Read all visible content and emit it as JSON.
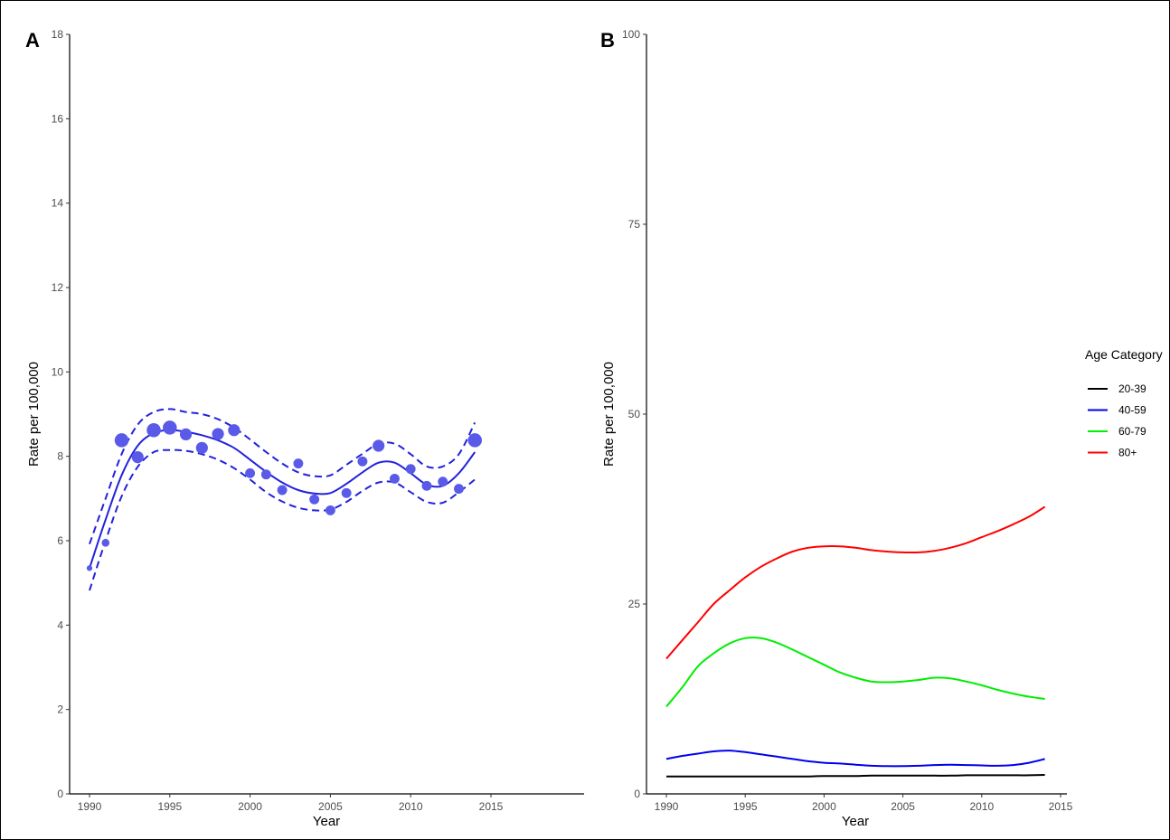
{
  "chart_data": [
    {
      "panel": "A",
      "type": "scatter",
      "xlabel": "Year",
      "ylabel": "Rate per 100,000",
      "xlim": [
        1990,
        2015
      ],
      "ylim": [
        0,
        18
      ],
      "x_ticks": [
        1990,
        1995,
        2000,
        2005,
        2010,
        2015
      ],
      "y_ticks": [
        0,
        2,
        4,
        6,
        8,
        10,
        12,
        14,
        16,
        18
      ],
      "points": [
        {
          "x": 1990,
          "y": 5.35,
          "size": 1
        },
        {
          "x": 1991,
          "y": 5.95,
          "size": 2
        },
        {
          "x": 1992,
          "y": 8.38,
          "size": 5
        },
        {
          "x": 1993,
          "y": 7.98,
          "size": 4
        },
        {
          "x": 1994,
          "y": 8.62,
          "size": 5
        },
        {
          "x": 1995,
          "y": 8.68,
          "size": 5
        },
        {
          "x": 1996,
          "y": 8.52,
          "size": 4
        },
        {
          "x": 1997,
          "y": 8.2,
          "size": 4
        },
        {
          "x": 1998,
          "y": 8.53,
          "size": 4
        },
        {
          "x": 1999,
          "y": 8.62,
          "size": 4
        },
        {
          "x": 2000,
          "y": 7.6,
          "size": 3
        },
        {
          "x": 2001,
          "y": 7.57,
          "size": 3
        },
        {
          "x": 2002,
          "y": 7.2,
          "size": 3
        },
        {
          "x": 2003,
          "y": 7.83,
          "size": 3
        },
        {
          "x": 2004,
          "y": 6.98,
          "size": 3
        },
        {
          "x": 2005,
          "y": 6.72,
          "size": 3
        },
        {
          "x": 2006,
          "y": 7.13,
          "size": 3
        },
        {
          "x": 2007,
          "y": 7.88,
          "size": 3
        },
        {
          "x": 2008,
          "y": 8.25,
          "size": 4
        },
        {
          "x": 2009,
          "y": 7.47,
          "size": 3
        },
        {
          "x": 2010,
          "y": 7.7,
          "size": 3
        },
        {
          "x": 2011,
          "y": 7.3,
          "size": 3
        },
        {
          "x": 2012,
          "y": 7.4,
          "size": 3
        },
        {
          "x": 2013,
          "y": 7.23,
          "size": 3
        },
        {
          "x": 2014,
          "y": 8.38,
          "size": 5
        }
      ],
      "fit_line": {
        "x": [
          1990,
          1991,
          1992,
          1993,
          1994,
          1995,
          1996,
          1997,
          1998,
          1999,
          2000,
          2001,
          2002,
          2003,
          2004,
          2005,
          2006,
          2007,
          2008,
          2009,
          2010,
          2011,
          2012,
          2013,
          2014
        ],
        "y": [
          5.35,
          6.5,
          7.55,
          8.25,
          8.55,
          8.62,
          8.58,
          8.5,
          8.38,
          8.2,
          7.92,
          7.63,
          7.38,
          7.2,
          7.12,
          7.13,
          7.35,
          7.62,
          7.85,
          7.85,
          7.6,
          7.33,
          7.3,
          7.6,
          8.1
        ],
        "lower": [
          4.82,
          6.0,
          7.05,
          7.75,
          8.1,
          8.15,
          8.13,
          8.05,
          7.92,
          7.72,
          7.45,
          7.15,
          6.93,
          6.78,
          6.72,
          6.74,
          6.92,
          7.18,
          7.38,
          7.38,
          7.15,
          6.92,
          6.9,
          7.15,
          7.45
        ],
        "upper": [
          5.92,
          7.0,
          8.05,
          8.75,
          9.05,
          9.12,
          9.05,
          9.0,
          8.88,
          8.68,
          8.4,
          8.1,
          7.83,
          7.62,
          7.53,
          7.55,
          7.8,
          8.06,
          8.3,
          8.3,
          8.05,
          7.76,
          7.76,
          8.05,
          8.8
        ],
        "color": "#2222dd"
      },
      "point_color": "#5a5ae8"
    },
    {
      "panel": "B",
      "type": "line",
      "xlabel": "Year",
      "ylabel": "Rate per 100,000",
      "xlim": [
        1990,
        2015
      ],
      "ylim": [
        0,
        100
      ],
      "x_ticks": [
        1990,
        1995,
        2000,
        2005,
        2010,
        2015
      ],
      "y_ticks": [
        0,
        25,
        50,
        75,
        100
      ],
      "legend_title": "Age Category",
      "legend_position": "right",
      "x": [
        1990,
        1991,
        1992,
        1993,
        1994,
        1995,
        1996,
        1997,
        1998,
        1999,
        2000,
        2001,
        2002,
        2003,
        2004,
        2005,
        2006,
        2007,
        2008,
        2009,
        2010,
        2011,
        2012,
        2013,
        2014
      ],
      "series": [
        {
          "name": "20-39",
          "color": "#000000",
          "values": [
            2.3,
            2.3,
            2.3,
            2.3,
            2.3,
            2.3,
            2.3,
            2.3,
            2.3,
            2.3,
            2.35,
            2.35,
            2.35,
            2.4,
            2.4,
            2.4,
            2.4,
            2.4,
            2.4,
            2.45,
            2.45,
            2.45,
            2.45,
            2.45,
            2.5
          ]
        },
        {
          "name": "40-59",
          "color": "#0000ee",
          "values": [
            4.6,
            5.0,
            5.3,
            5.6,
            5.7,
            5.5,
            5.2,
            4.9,
            4.6,
            4.3,
            4.1,
            4.0,
            3.85,
            3.7,
            3.65,
            3.65,
            3.7,
            3.8,
            3.85,
            3.8,
            3.75,
            3.7,
            3.8,
            4.1,
            4.6
          ]
        },
        {
          "name": "60-79",
          "color": "#00ee00",
          "values": [
            11.5,
            14.0,
            16.8,
            18.5,
            19.8,
            20.5,
            20.5,
            19.9,
            19.0,
            18.0,
            17.0,
            16.0,
            15.3,
            14.8,
            14.7,
            14.8,
            15.0,
            15.3,
            15.2,
            14.8,
            14.3,
            13.7,
            13.2,
            12.8,
            12.5
          ]
        },
        {
          "name": "80+",
          "color": "#ff0000",
          "values": [
            17.8,
            20.2,
            22.6,
            25.0,
            26.8,
            28.5,
            29.9,
            31.0,
            31.9,
            32.4,
            32.6,
            32.6,
            32.4,
            32.1,
            31.9,
            31.8,
            31.8,
            32.0,
            32.4,
            33.0,
            33.8,
            34.6,
            35.5,
            36.5,
            37.8
          ]
        }
      ]
    }
  ]
}
